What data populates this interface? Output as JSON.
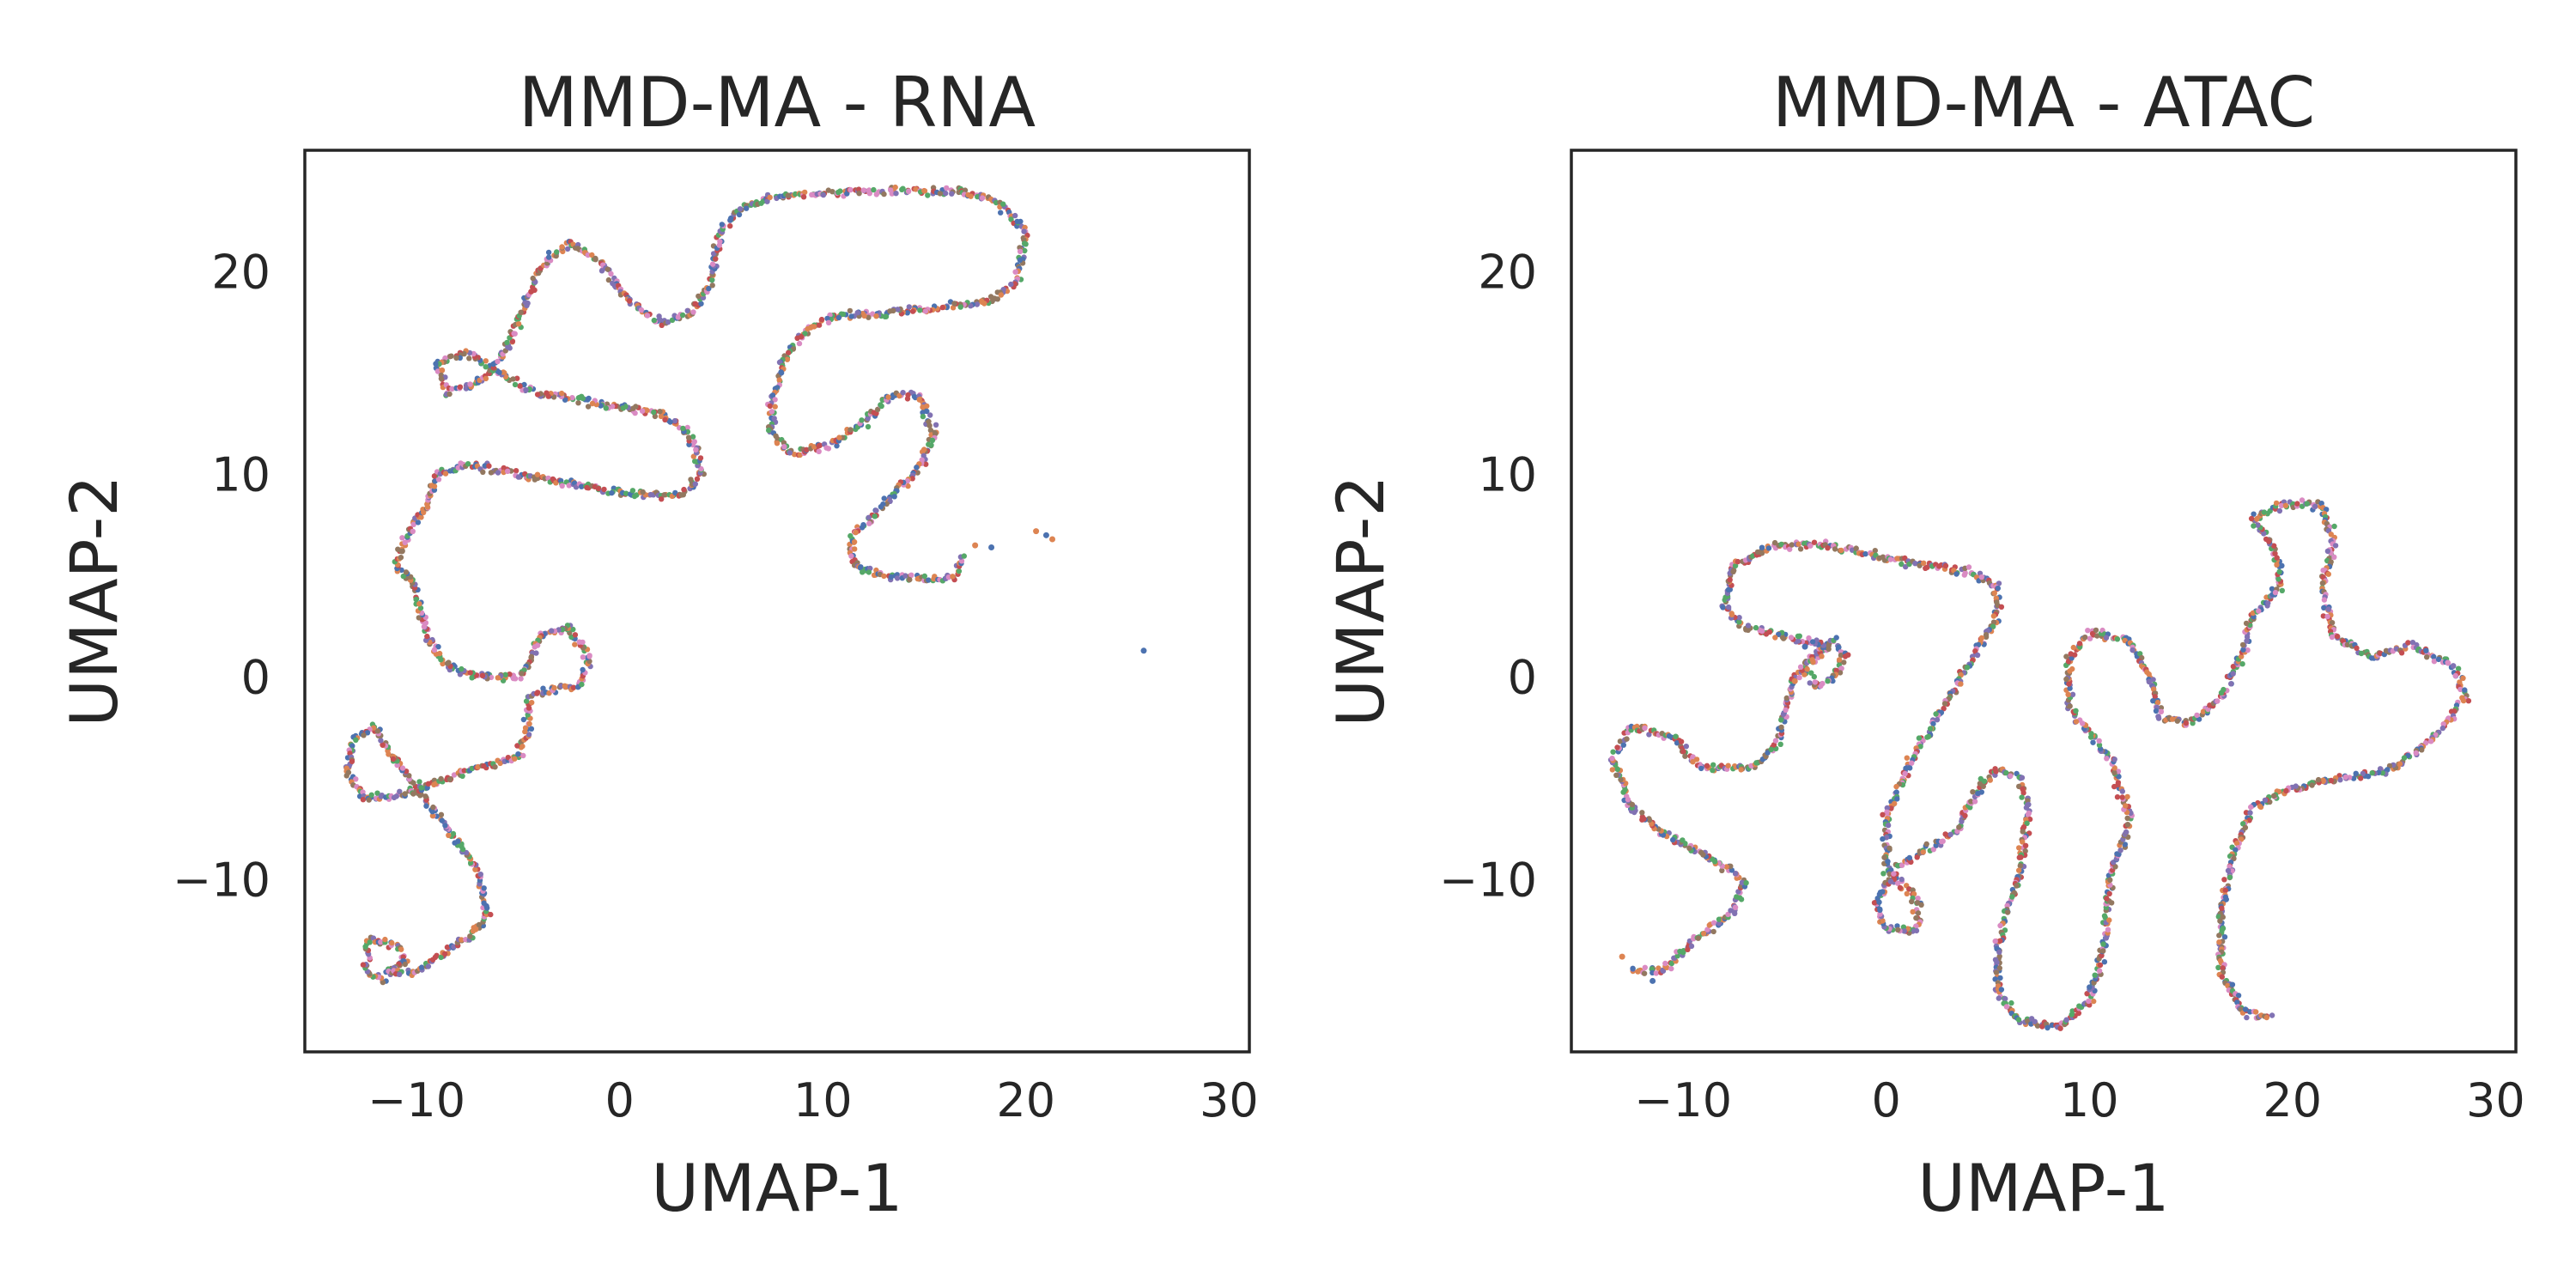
{
  "chart_data": [
    {
      "type": "scatter",
      "title": "MMD-MA - RNA",
      "xlabel": "UMAP-1",
      "ylabel": "UMAP-2",
      "xlim": [
        -15.5,
        31
      ],
      "ylim": [
        -18.5,
        26
      ],
      "xticks": [
        -10,
        0,
        10,
        20,
        30
      ],
      "xtick_labels": [
        "−10",
        "0",
        "10",
        "20",
        "30"
      ],
      "yticks": [
        -10,
        0,
        10,
        20
      ],
      "ytick_labels": [
        "−10",
        "0",
        "10",
        "20"
      ],
      "grid": false,
      "legend": "none",
      "point_colors": [
        "#4c72b0",
        "#dd8452",
        "#c44e52",
        "#da8bc3",
        "#8172b3",
        "#55a868",
        "#937860"
      ],
      "curve": [
        [
          -11.5,
          -15.0
        ],
        [
          -12.5,
          -14.5
        ],
        [
          -12.3,
          -13.0
        ],
        [
          -11.0,
          -13.2
        ],
        [
          -10.5,
          -14.0
        ],
        [
          -11.5,
          -14.6
        ],
        [
          -10.0,
          -14.5
        ],
        [
          -8.5,
          -13.5
        ],
        [
          -7.0,
          -12.5
        ],
        [
          -6.5,
          -11.5
        ],
        [
          -7.0,
          -9.5
        ],
        [
          -8.5,
          -7.5
        ],
        [
          -10.0,
          -5.5
        ],
        [
          -11.5,
          -3.5
        ],
        [
          -12.0,
          -2.5
        ],
        [
          -13.0,
          -3.0
        ],
        [
          -13.5,
          -4.5
        ],
        [
          -12.5,
          -6.0
        ],
        [
          -10.5,
          -5.8
        ],
        [
          -8.5,
          -5.0
        ],
        [
          -7.0,
          -4.5
        ],
        [
          -5.0,
          -4.0
        ],
        [
          -4.5,
          -2.5
        ],
        [
          -4.5,
          -1.0
        ],
        [
          -3.0,
          -0.5
        ],
        [
          -2.0,
          -0.5
        ],
        [
          -1.5,
          1.0
        ],
        [
          -2.5,
          2.5
        ],
        [
          -4.0,
          2.0
        ],
        [
          -4.5,
          0.5
        ],
        [
          -5.0,
          0.0
        ],
        [
          -6.5,
          0.0
        ],
        [
          -8.5,
          0.5
        ],
        [
          -9.5,
          2.0
        ],
        [
          -10.0,
          4.5
        ],
        [
          -11.0,
          5.5
        ],
        [
          -10.5,
          7.0
        ],
        [
          -9.5,
          8.5
        ],
        [
          -9.0,
          10.0
        ],
        [
          -7.5,
          10.5
        ],
        [
          -5.0,
          10.0
        ],
        [
          -2.0,
          9.5
        ],
        [
          1.0,
          9.0
        ],
        [
          3.0,
          9.0
        ],
        [
          4.0,
          10.0
        ],
        [
          3.5,
          12.0
        ],
        [
          2.0,
          13.0
        ],
        [
          -1.0,
          13.5
        ],
        [
          -4.0,
          14.0
        ],
        [
          -6.0,
          15.0
        ],
        [
          -7.5,
          16.0
        ],
        [
          -9.0,
          15.5
        ],
        [
          -8.5,
          14.0
        ],
        [
          -7.0,
          14.5
        ],
        [
          -6.0,
          15.5
        ],
        [
          -5.0,
          17.5
        ],
        [
          -4.0,
          20.0
        ],
        [
          -2.5,
          21.5
        ],
        [
          -1.0,
          20.5
        ],
        [
          0.5,
          18.5
        ],
        [
          2.0,
          17.5
        ],
        [
          3.5,
          18.0
        ],
        [
          4.5,
          19.5
        ],
        [
          5.0,
          22.0
        ],
        [
          6.0,
          23.2
        ],
        [
          8.0,
          23.8
        ],
        [
          11.0,
          23.9
        ],
        [
          14.0,
          24.0
        ],
        [
          16.5,
          24.0
        ],
        [
          18.5,
          23.5
        ],
        [
          20.0,
          22.0
        ],
        [
          19.5,
          19.5
        ],
        [
          18.0,
          18.5
        ],
        [
          15.5,
          18.2
        ],
        [
          13.0,
          18.0
        ],
        [
          10.5,
          17.8
        ],
        [
          9.0,
          17.0
        ],
        [
          8.0,
          15.5
        ],
        [
          7.5,
          13.5
        ],
        [
          7.5,
          12.0
        ],
        [
          8.5,
          11.0
        ],
        [
          10.5,
          11.5
        ],
        [
          12.0,
          12.5
        ],
        [
          13.5,
          14.0
        ],
        [
          14.8,
          13.8
        ],
        [
          15.5,
          12.0
        ],
        [
          14.5,
          10.0
        ],
        [
          13.0,
          8.5
        ],
        [
          11.5,
          7.0
        ],
        [
          11.5,
          5.5
        ],
        [
          13.0,
          5.0
        ],
        [
          15.0,
          4.8
        ],
        [
          16.5,
          5.0
        ],
        [
          17.0,
          6.0
        ]
      ],
      "outliers": [
        [
          17.5,
          6.5
        ],
        [
          18.3,
          6.4
        ],
        [
          20.5,
          7.2
        ],
        [
          21.0,
          7.0
        ],
        [
          21.3,
          6.8
        ],
        [
          25.8,
          1.3
        ]
      ]
    },
    {
      "type": "scatter",
      "title": "MMD-MA - ATAC",
      "xlabel": "UMAP-1",
      "ylabel": "UMAP-2",
      "xlim": [
        -15.5,
        31
      ],
      "ylim": [
        -18.5,
        26
      ],
      "xticks": [
        -10,
        0,
        10,
        20,
        30
      ],
      "xtick_labels": [
        "−10",
        "0",
        "10",
        "20",
        "30"
      ],
      "yticks": [
        -10,
        0,
        10,
        20
      ],
      "ytick_labels": [
        "−10",
        "0",
        "10",
        "20"
      ],
      "grid": false,
      "legend": "none",
      "point_colors": [
        "#4c72b0",
        "#dd8452",
        "#c44e52",
        "#da8bc3",
        "#8172b3",
        "#55a868",
        "#937860"
      ],
      "curve": [
        [
          -12.5,
          -14.5
        ],
        [
          -11.0,
          -14.5
        ],
        [
          -9.5,
          -13.0
        ],
        [
          -7.5,
          -11.5
        ],
        [
          -7.0,
          -10.0
        ],
        [
          -8.5,
          -9.0
        ],
        [
          -10.5,
          -8.0
        ],
        [
          -12.5,
          -6.5
        ],
        [
          -13.5,
          -4.0
        ],
        [
          -12.5,
          -2.5
        ],
        [
          -10.5,
          -3.0
        ],
        [
          -9.0,
          -4.5
        ],
        [
          -6.5,
          -4.5
        ],
        [
          -5.5,
          -3.5
        ],
        [
          -5.0,
          -2.0
        ],
        [
          -4.5,
          0.0
        ],
        [
          -3.5,
          1.0
        ],
        [
          -2.5,
          1.8
        ],
        [
          -2.0,
          1.0
        ],
        [
          -2.5,
          0.0
        ],
        [
          -3.5,
          -0.5
        ],
        [
          -4.0,
          0.5
        ],
        [
          -3.0,
          1.5
        ],
        [
          -5.0,
          2.0
        ],
        [
          -7.0,
          2.5
        ],
        [
          -8.0,
          3.5
        ],
        [
          -7.5,
          5.5
        ],
        [
          -5.5,
          6.5
        ],
        [
          -3.0,
          6.5
        ],
        [
          -0.5,
          6.0
        ],
        [
          2.0,
          5.5
        ],
        [
          4.0,
          5.2
        ],
        [
          5.5,
          4.5
        ],
        [
          5.5,
          3.0
        ],
        [
          4.0,
          0.5
        ],
        [
          2.5,
          -2.0
        ],
        [
          1.0,
          -4.5
        ],
        [
          0.0,
          -7.0
        ],
        [
          0.0,
          -9.5
        ],
        [
          1.5,
          -11.0
        ],
        [
          1.5,
          -12.5
        ],
        [
          0.0,
          -12.5
        ],
        [
          -0.5,
          -11.0
        ],
        [
          0.5,
          -9.5
        ],
        [
          2.0,
          -8.5
        ],
        [
          3.5,
          -7.5
        ],
        [
          4.5,
          -5.5
        ],
        [
          5.5,
          -4.5
        ],
        [
          6.5,
          -5.0
        ],
        [
          7.0,
          -6.5
        ],
        [
          6.5,
          -10.0
        ],
        [
          5.5,
          -13.0
        ],
        [
          5.5,
          -15.5
        ],
        [
          6.5,
          -17.0
        ],
        [
          8.5,
          -17.3
        ],
        [
          10.0,
          -16.0
        ],
        [
          10.8,
          -13.0
        ],
        [
          11.0,
          -10.0
        ],
        [
          12.0,
          -7.0
        ],
        [
          11.0,
          -4.0
        ],
        [
          9.0,
          -1.5
        ],
        [
          9.0,
          1.0
        ],
        [
          10.0,
          2.2
        ],
        [
          12.0,
          1.8
        ],
        [
          13.0,
          0.0
        ],
        [
          13.5,
          -2.0
        ],
        [
          15.0,
          -2.3
        ],
        [
          16.5,
          -1.0
        ],
        [
          17.5,
          1.0
        ],
        [
          18.0,
          3.0
        ],
        [
          19.5,
          4.5
        ],
        [
          19.0,
          6.5
        ],
        [
          18.0,
          7.8
        ],
        [
          19.5,
          8.5
        ],
        [
          21.5,
          8.5
        ],
        [
          22.0,
          6.5
        ],
        [
          21.5,
          4.5
        ],
        [
          22.0,
          2.0
        ],
        [
          24.0,
          1.0
        ],
        [
          26.0,
          1.5
        ],
        [
          28.0,
          0.5
        ],
        [
          28.5,
          -1.0
        ],
        [
          27.0,
          -3.0
        ],
        [
          25.0,
          -4.5
        ],
        [
          22.5,
          -5.0
        ],
        [
          20.0,
          -5.5
        ],
        [
          18.0,
          -6.5
        ],
        [
          17.0,
          -9.0
        ],
        [
          16.5,
          -12.0
        ],
        [
          16.5,
          -14.5
        ],
        [
          17.5,
          -16.5
        ],
        [
          19.0,
          -16.8
        ]
      ],
      "outliers": [
        [
          -13.0,
          -13.8
        ],
        [
          -11.5,
          -15.0
        ],
        [
          -4.5,
          -0.2
        ],
        [
          -4.0,
          1.5
        ]
      ]
    }
  ]
}
